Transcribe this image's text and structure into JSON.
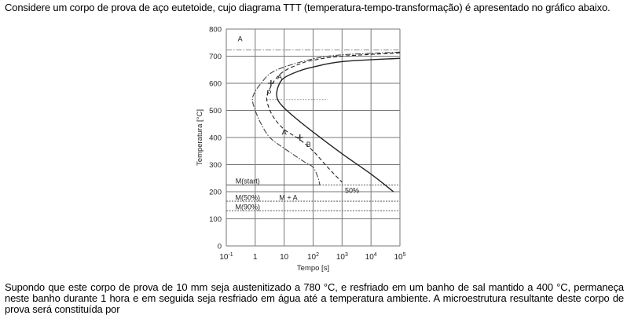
{
  "question": {
    "intro": "Considere um corpo de prova de aço eutetoide, cujo diagrama TTT (temperatura-tempo-transformação) é apresentado no gráfico abaixo.",
    "statement": "Supondo que este corpo de prova de 10 mm seja austenitizado a 780 °C, e resfriado em um banho de sal mantido a 400 °C, permaneça neste banho durante 1 hora e em seguida seja resfriado em água até a temperatura ambiente. A microestrutura resultante deste corpo de prova será constituída por"
  },
  "chart_data": {
    "type": "line",
    "xlabel": "Tempo [s]",
    "ylabel": "Temperatura [°C]",
    "xscale": "log",
    "xlim": [
      0.1,
      100000
    ],
    "ylim": [
      0,
      800
    ],
    "grid": true,
    "x_ticks": [
      {
        "base": "10",
        "exp": "-1",
        "value": 0.1
      },
      {
        "base": "1",
        "exp": "",
        "value": 1
      },
      {
        "base": "10",
        "exp": "",
        "value": 10
      },
      {
        "base": "10",
        "exp": "2",
        "value": 100
      },
      {
        "base": "10",
        "exp": "3",
        "value": 1000
      },
      {
        "base": "10",
        "exp": "4",
        "value": 10000
      },
      {
        "base": "10",
        "exp": "5",
        "value": 100000
      }
    ],
    "y_ticks": [
      "0",
      "100",
      "200",
      "300",
      "400",
      "500",
      "600",
      "700",
      "800"
    ],
    "series": [
      {
        "style": "dash-dot",
        "color": "#444444",
        "points": [
          [
            100000,
            715
          ],
          [
            1000,
            705
          ],
          [
            100,
            690
          ],
          [
            10,
            660
          ],
          [
            3.2,
            635
          ],
          [
            1.6,
            600
          ],
          [
            1,
            570
          ],
          [
            0.8,
            540
          ],
          [
            1,
            500
          ],
          [
            1.6,
            450
          ],
          [
            3.2,
            400
          ],
          [
            10,
            360
          ],
          [
            50,
            310
          ],
          [
            100,
            290
          ],
          [
            150,
            250
          ],
          [
            170,
            225
          ]
        ]
      },
      {
        "style": "dashed",
        "color": "#222222",
        "points": [
          [
            100000,
            712
          ],
          [
            1000,
            700
          ],
          [
            100,
            685
          ],
          [
            32,
            670
          ],
          [
            10,
            645
          ],
          [
            5,
            615
          ],
          [
            3.2,
            580
          ],
          [
            2.5,
            540
          ],
          [
            4,
            480
          ],
          [
            10,
            430
          ],
          [
            32,
            395
          ],
          [
            100,
            350
          ],
          [
            320,
            290
          ],
          [
            1000,
            235
          ]
        ]
      },
      {
        "style": "solid",
        "color": "#222222",
        "points": [
          [
            100000,
            692
          ],
          [
            1000,
            680
          ],
          [
            100,
            660
          ],
          [
            32,
            645
          ],
          [
            10,
            620
          ],
          [
            6.3,
            590
          ],
          [
            5.6,
            550
          ],
          [
            8,
            520
          ],
          [
            20,
            480
          ],
          [
            100,
            420
          ],
          [
            1000,
            340
          ],
          [
            10000,
            265
          ],
          [
            60000,
            200
          ]
        ]
      }
    ],
    "reference_lines": [
      {
        "T": 723,
        "style": "dash-dot",
        "from": 0.1,
        "to": 100000,
        "color": "#999999"
      },
      {
        "T": 540,
        "style": "dotted",
        "from": 2.5,
        "to": 320,
        "color": "#aaaaaa"
      },
      {
        "T": 225,
        "style": "solid",
        "from": 0.1,
        "to": 170,
        "color": "#555555"
      },
      {
        "T": 225,
        "style": "dotted",
        "from": 170,
        "to": 100000,
        "color": "#555555"
      },
      {
        "T": 165,
        "style": "dotted",
        "from": 0.1,
        "to": 100000,
        "color": "#666666"
      },
      {
        "T": 130,
        "style": "dotted",
        "from": 0.1,
        "to": 100000,
        "color": "#666666"
      }
    ],
    "markers": [
      [
        3.5,
        600
      ],
      [
        35,
        400
      ]
    ],
    "annotations": [
      {
        "text": "A",
        "t": 0.3,
        "T": 755
      },
      {
        "text": "A",
        "t": 7,
        "T": 615
      },
      {
        "text": "P",
        "t": 3,
        "T": 555
      },
      {
        "text": "A",
        "t": 10,
        "T": 410
      },
      {
        "text": "B",
        "t": 70,
        "T": 365
      },
      {
        "text": "M(start)",
        "t": 0.55,
        "T": 230
      },
      {
        "text": "M(50%)",
        "t": 0.55,
        "T": 170
      },
      {
        "text": "M(90%)",
        "t": 0.55,
        "T": 135
      },
      {
        "text": "M + A",
        "t": 14,
        "T": 170
      },
      {
        "text": "50%",
        "t": 2200,
        "T": 195
      }
    ]
  }
}
